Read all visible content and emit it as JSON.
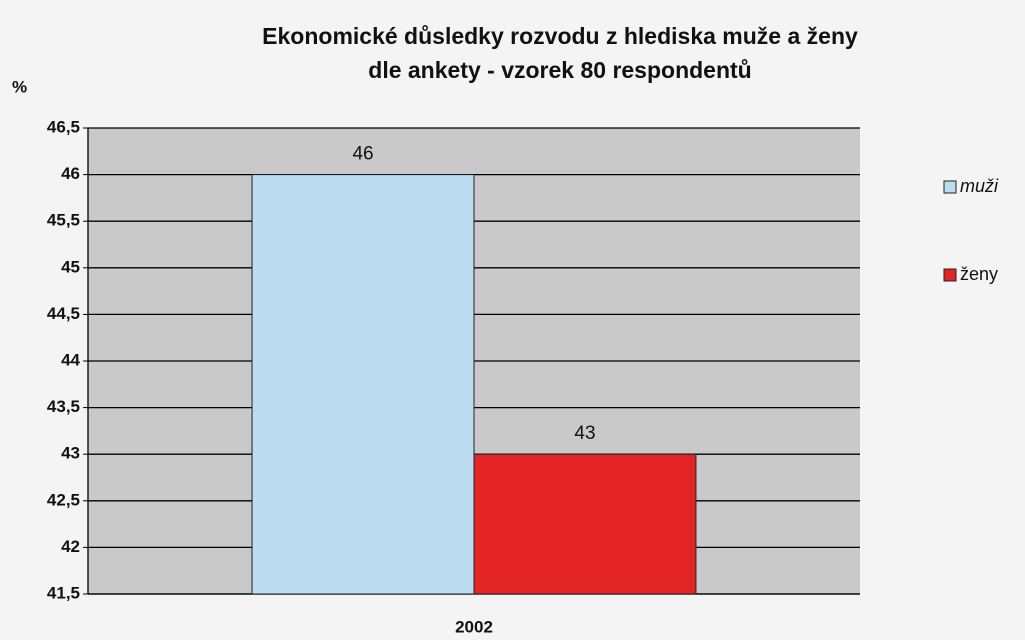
{
  "chart_data": {
    "type": "bar",
    "title": [
      "Ekonomické důsledky rozvodu z hlediska muže a ženy",
      "dle ankety - vzorek 80 respondentů"
    ],
    "y_label": "%",
    "categories": [
      "2002"
    ],
    "series": [
      {
        "name": "muži",
        "color": "#bcdcf2",
        "values": [
          46
        ]
      },
      {
        "name": "ženy",
        "color": "#e42525",
        "values": [
          43
        ]
      }
    ],
    "ylim": [
      41.5,
      46.5
    ],
    "yticks": [
      {
        "value": 41.5,
        "label": "41,5"
      },
      42,
      {
        "value": 42.5,
        "label": "42,5"
      },
      43,
      {
        "value": 43.5,
        "label": "43,5"
      },
      44,
      {
        "value": 44.5,
        "label": "44,5"
      },
      45,
      {
        "value": 45.5,
        "label": "45,5"
      },
      46,
      {
        "value": 46.5,
        "label": "46,5"
      }
    ],
    "grid": true,
    "legend": "right"
  }
}
